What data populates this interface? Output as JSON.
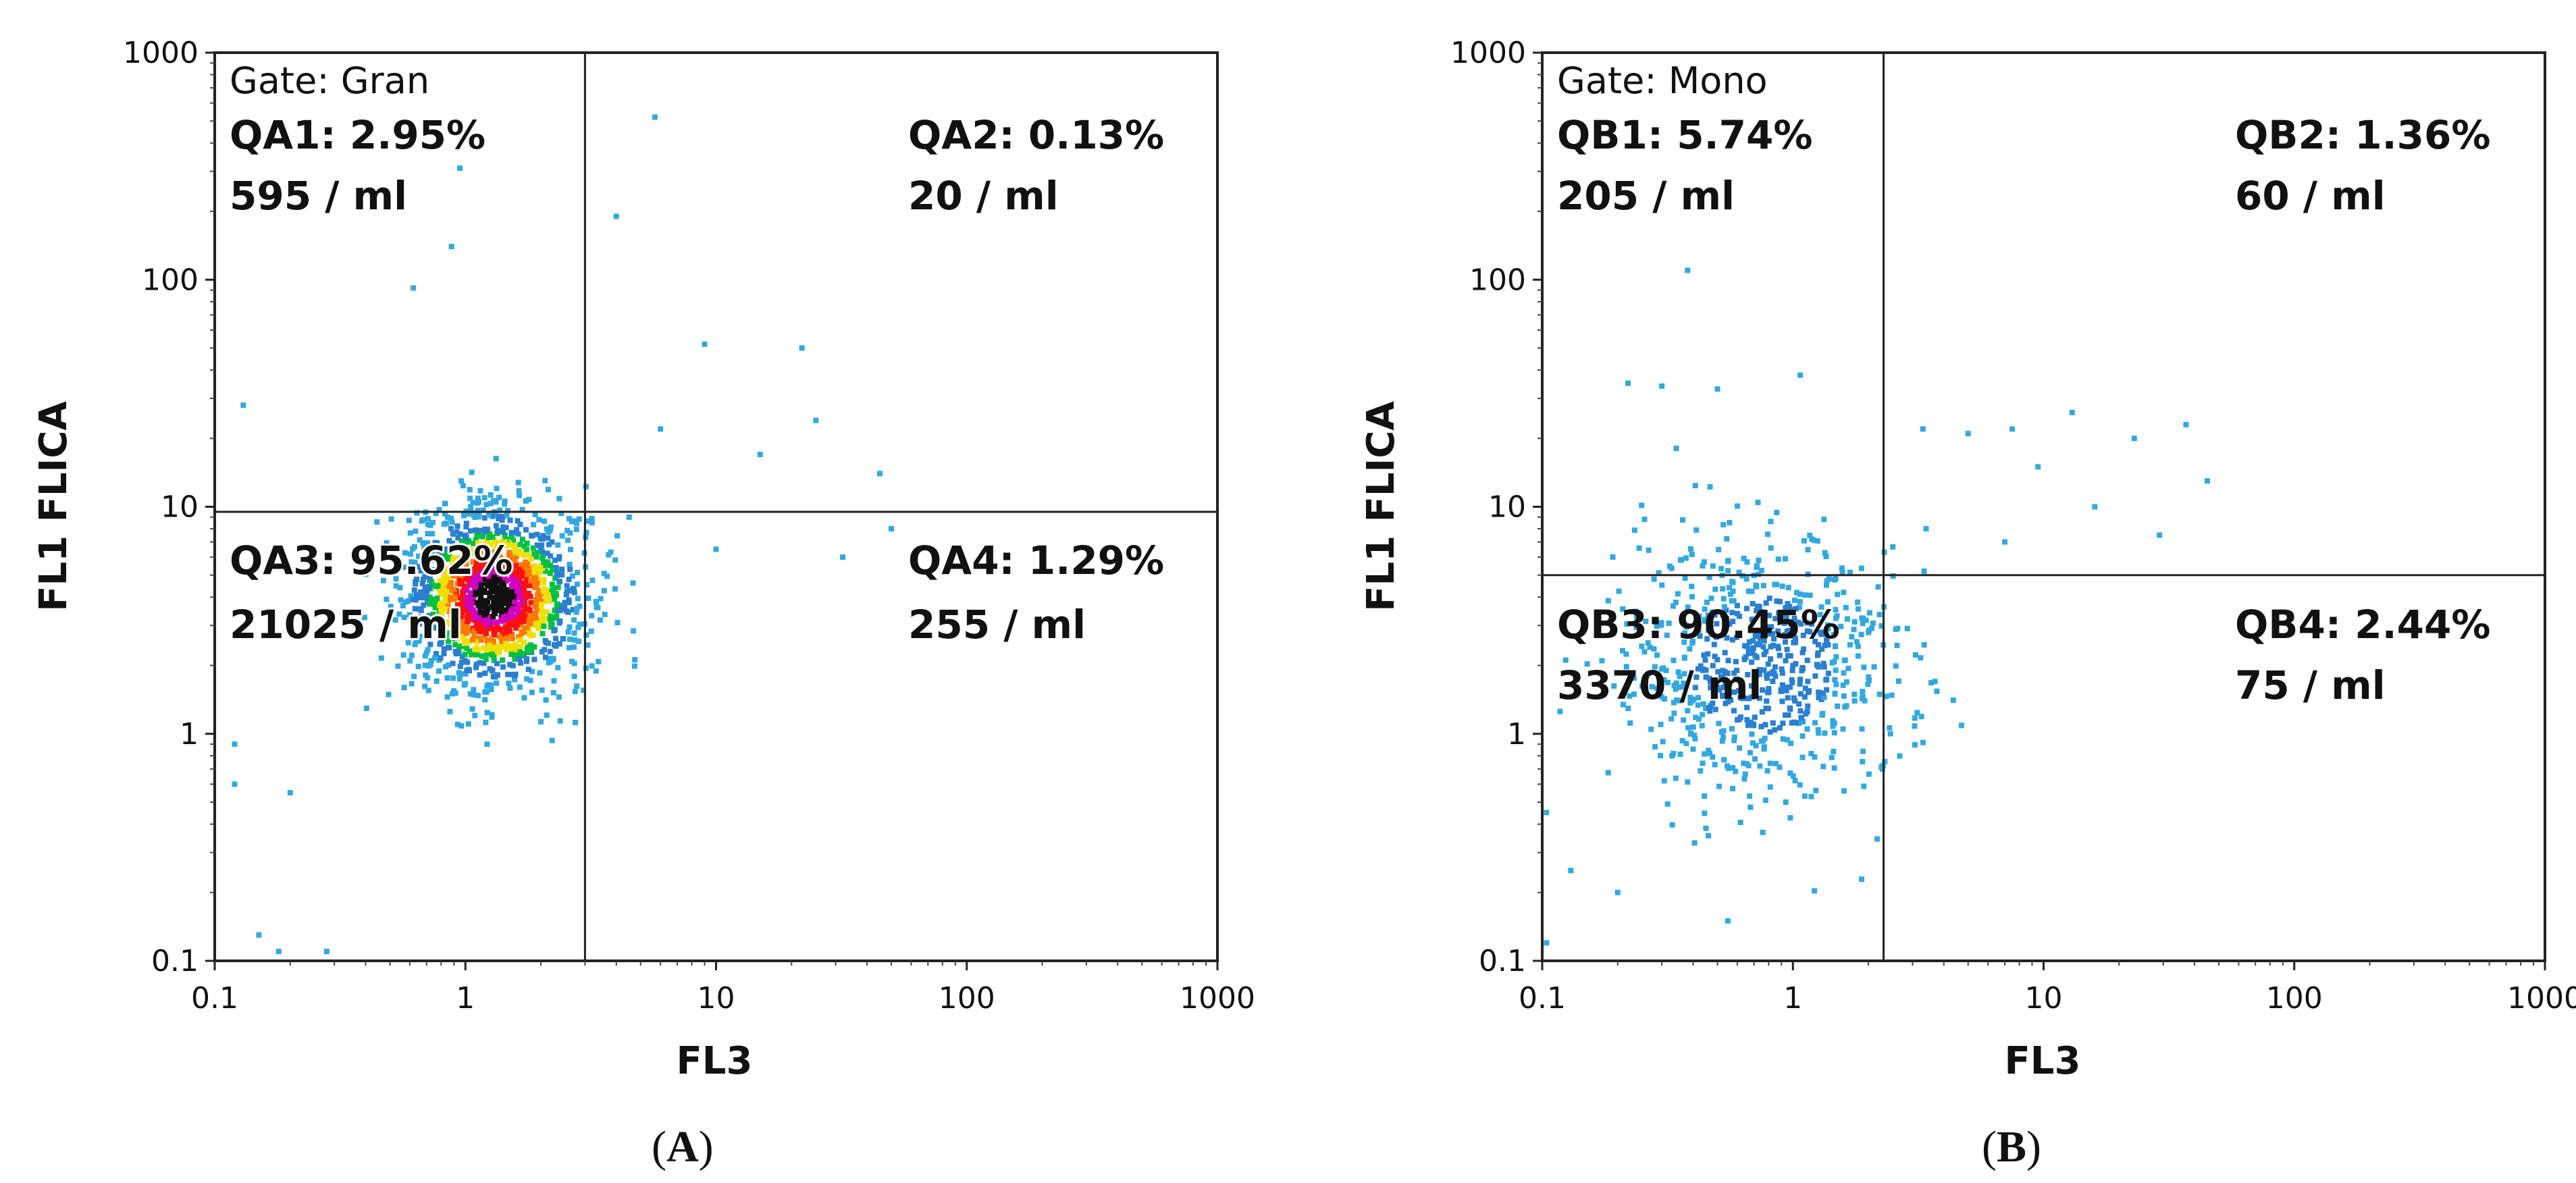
{
  "chart_data": [
    {
      "type": "scatter",
      "panel_label": "A",
      "gate_label": "Gate: Gran",
      "xlabel": "FL3",
      "ylabel": "FL1 FLICA",
      "x_scale": "log",
      "y_scale": "log",
      "xlim": [
        0.1,
        1000
      ],
      "ylim": [
        0.1,
        1000
      ],
      "x_ticks": [
        "0.1",
        "1",
        "10",
        "100",
        "1000"
      ],
      "y_ticks": [
        "0.1",
        "1",
        "10",
        "100",
        "1000"
      ],
      "gate_x": 3.0,
      "gate_y": 9.5,
      "colors": {
        "events_low": "#33a8e0",
        "events_dense": "#2a7fd0",
        "hot": [
          "#00c040",
          "#f0e000",
          "#ff7a00",
          "#ff1010",
          "#d000c0",
          "#101010"
        ]
      },
      "quadrants": [
        {
          "id": "QA1",
          "position": "top-left",
          "percent": "2.95%",
          "label": "QA1: 2.95%",
          "count": "595 / ml"
        },
        {
          "id": "QA2",
          "position": "top-right",
          "percent": "0.13%",
          "label": "QA2: 0.13%",
          "count": "20 / ml"
        },
        {
          "id": "QA3",
          "position": "bottom-left",
          "percent": "95.62%",
          "label": "QA3: 95.62%",
          "count": "21025 / ml"
        },
        {
          "id": "QA4",
          "position": "bottom-right",
          "percent": "1.29%",
          "label": "QA4: 1.29%",
          "count": "255 / ml"
        }
      ],
      "population": {
        "center_x": 1.3,
        "center_y": 4.0,
        "sd_log_x": 0.18,
        "sd_log_y": 0.2,
        "approx_events": 1500,
        "style": "density-hot"
      },
      "sparse_events": [
        [
          0.62,
          92
        ],
        [
          0.88,
          140
        ],
        [
          0.95,
          310
        ],
        [
          5.7,
          520
        ],
        [
          4.0,
          190
        ],
        [
          9.0,
          52
        ],
        [
          22,
          50
        ],
        [
          25,
          24
        ],
        [
          15,
          17
        ],
        [
          6.0,
          22
        ],
        [
          45,
          14
        ],
        [
          50,
          8
        ],
        [
          32,
          6
        ],
        [
          4.5,
          9
        ],
        [
          10,
          6.5
        ],
        [
          0.13,
          28
        ],
        [
          0.18,
          0.11
        ],
        [
          0.28,
          0.11
        ],
        [
          0.12,
          0.6
        ],
        [
          0.12,
          0.9
        ],
        [
          0.2,
          0.55
        ],
        [
          0.15,
          0.13
        ]
      ]
    },
    {
      "type": "scatter",
      "panel_label": "B",
      "gate_label": "Gate: Mono",
      "xlabel": "FL3",
      "ylabel": "FL1 FLICA",
      "x_scale": "log",
      "y_scale": "log",
      "xlim": [
        0.1,
        1000
      ],
      "ylim": [
        0.1,
        1000
      ],
      "x_ticks": [
        "0.1",
        "1",
        "10",
        "100",
        "1000"
      ],
      "y_ticks": [
        "0.1",
        "1",
        "10",
        "100",
        "1000"
      ],
      "gate_x": 2.3,
      "gate_y": 5.0,
      "colors": {
        "events_low": "#33a8e0",
        "events_dense": "#2a7fd0"
      },
      "quadrants": [
        {
          "id": "QB1",
          "position": "top-left",
          "percent": "5.74%",
          "label": "QB1: 5.74%",
          "count": "205 / ml"
        },
        {
          "id": "QB2",
          "position": "top-right",
          "percent": "1.36%",
          "label": "QB2: 1.36%",
          "count": "60 / ml"
        },
        {
          "id": "QB3",
          "position": "bottom-left",
          "percent": "90.45%",
          "label": "QB3: 90.45%",
          "count": "3370 / ml"
        },
        {
          "id": "QB4",
          "position": "bottom-right",
          "percent": "2.44%",
          "label": "QB4: 2.44%",
          "count": "75 / ml"
        }
      ],
      "population": {
        "center_x": 0.75,
        "center_y": 2.0,
        "sd_log_x": 0.28,
        "sd_log_y": 0.3,
        "approx_events": 700,
        "style": "sparse-blue"
      },
      "sparse_events": [
        [
          0.38,
          110
        ],
        [
          0.22,
          35
        ],
        [
          0.3,
          34
        ],
        [
          1.07,
          38
        ],
        [
          0.5,
          33
        ],
        [
          3.3,
          22
        ],
        [
          5.0,
          21
        ],
        [
          7.5,
          22
        ],
        [
          13,
          26
        ],
        [
          23,
          20
        ],
        [
          37,
          23
        ],
        [
          45,
          13
        ],
        [
          9.5,
          15
        ],
        [
          16,
          10
        ],
        [
          7,
          7
        ],
        [
          29,
          7.5
        ],
        [
          3.4,
          8
        ],
        [
          0.55,
          0.15
        ],
        [
          0.13,
          0.25
        ],
        [
          0.2,
          0.2
        ],
        [
          0.104,
          0.12
        ],
        [
          0.104,
          0.45
        ]
      ]
    }
  ]
}
